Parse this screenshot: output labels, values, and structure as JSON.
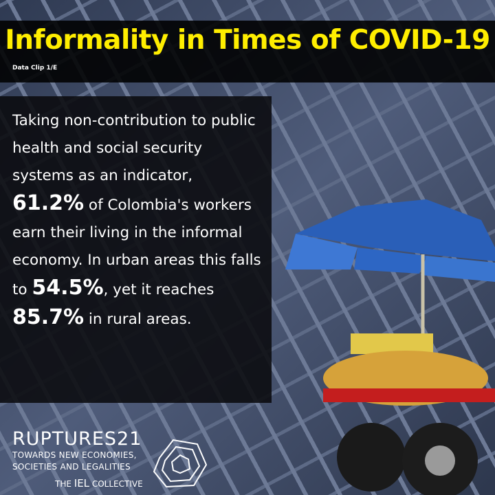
{
  "header": {
    "title": "Informality in Times of COVID-19",
    "subtitle": "Data Clip 1/E"
  },
  "body": {
    "segments": [
      {
        "text": "Taking non-contribution to public health and social security systems as an indicator, ",
        "bold": false
      },
      {
        "text": "61.2%",
        "bold": true
      },
      {
        "text": " of Colombia's workers earn their living in the informal economy. In urban areas this falls to ",
        "bold": false
      },
      {
        "text": "54.5%",
        "bold": true
      },
      {
        "text": ", yet it reaches ",
        "bold": false
      },
      {
        "text": "85.7%",
        "bold": true
      },
      {
        "text": " in rural areas.",
        "bold": false
      }
    ]
  },
  "footer": {
    "brand": "RUPTURES21",
    "tagline_1": "TOWARDS NEW ECONOMIES,",
    "tagline_2": "SOCIETIES AND LEGALITIES",
    "collective_pre": "THE",
    "collective_mid": "IEL",
    "collective_post": "COLLECTIVE"
  }
}
